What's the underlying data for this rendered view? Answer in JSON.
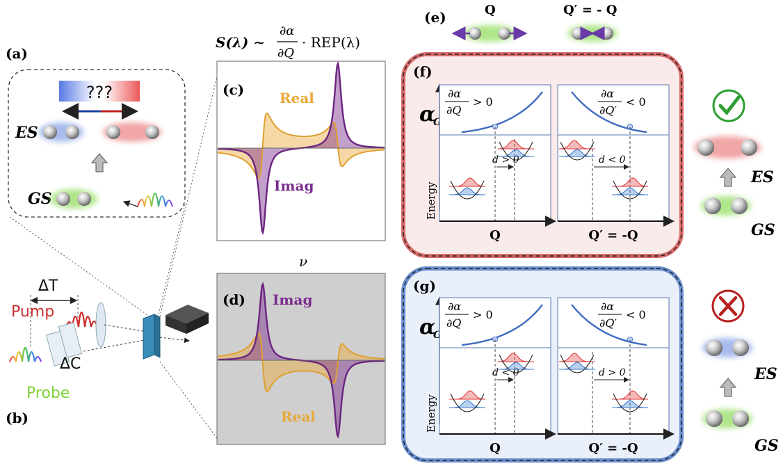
{
  "panels": {
    "a": "(a)",
    "b": "(b)",
    "c": "(c)",
    "d": "(d)",
    "e": "(e)",
    "f": "(f)",
    "g": "(g)"
  },
  "equation": {
    "lhs": "S(λ) ∼",
    "num": "∂α",
    "den": "∂Q",
    "rhs": "· REP(λ)"
  },
  "panel_a": {
    "question": "???",
    "es": "ES",
    "gs": "GS"
  },
  "panel_b": {
    "delta_t": "ΔT",
    "pump": "Pump",
    "delta_c": "ΔC",
    "probe": "Probe"
  },
  "panel_c": {
    "real": "Real",
    "imag": "Imag"
  },
  "nu": "ν",
  "panel_d": {
    "imag": "Imag",
    "real": "Real"
  },
  "panel_e": {
    "q": "Q",
    "qprime": "Q′ = - Q"
  },
  "panel_f": {
    "alpha": "α",
    "alpha_sub": "GS",
    "left_cond": "> 0",
    "right_cond": "< 0",
    "dalpha": "∂α",
    "dq": "∂Q",
    "dqp": "∂Q′",
    "energy": "Energy",
    "d_left": "d > 0",
    "d_right": "d < 0",
    "x_left": "Q",
    "x_right": "Q′ = -Q",
    "es": "ES",
    "gs": "GS"
  },
  "panel_g": {
    "alpha": "α",
    "alpha_sub": "GS",
    "left_cond": "> 0",
    "right_cond": "< 0",
    "dalpha": "∂α",
    "dq": "∂Q",
    "dqp": "∂Q′",
    "energy": "Energy",
    "d_left": "d < 0",
    "d_right": "d > 0",
    "x_left": "Q",
    "x_right": "Q′ = -Q",
    "es": "ES",
    "gs": "GS"
  },
  "colors": {
    "imag": "#7b2d8e",
    "real": "#e8a93a",
    "red_frame": "#d96b6b",
    "blue_frame": "#6a8fd0",
    "check": "#2e9e33",
    "cross": "#b82020",
    "pump": "#c83030",
    "probe": "#7fd33a",
    "curve_blue": "#3f6cc0"
  }
}
